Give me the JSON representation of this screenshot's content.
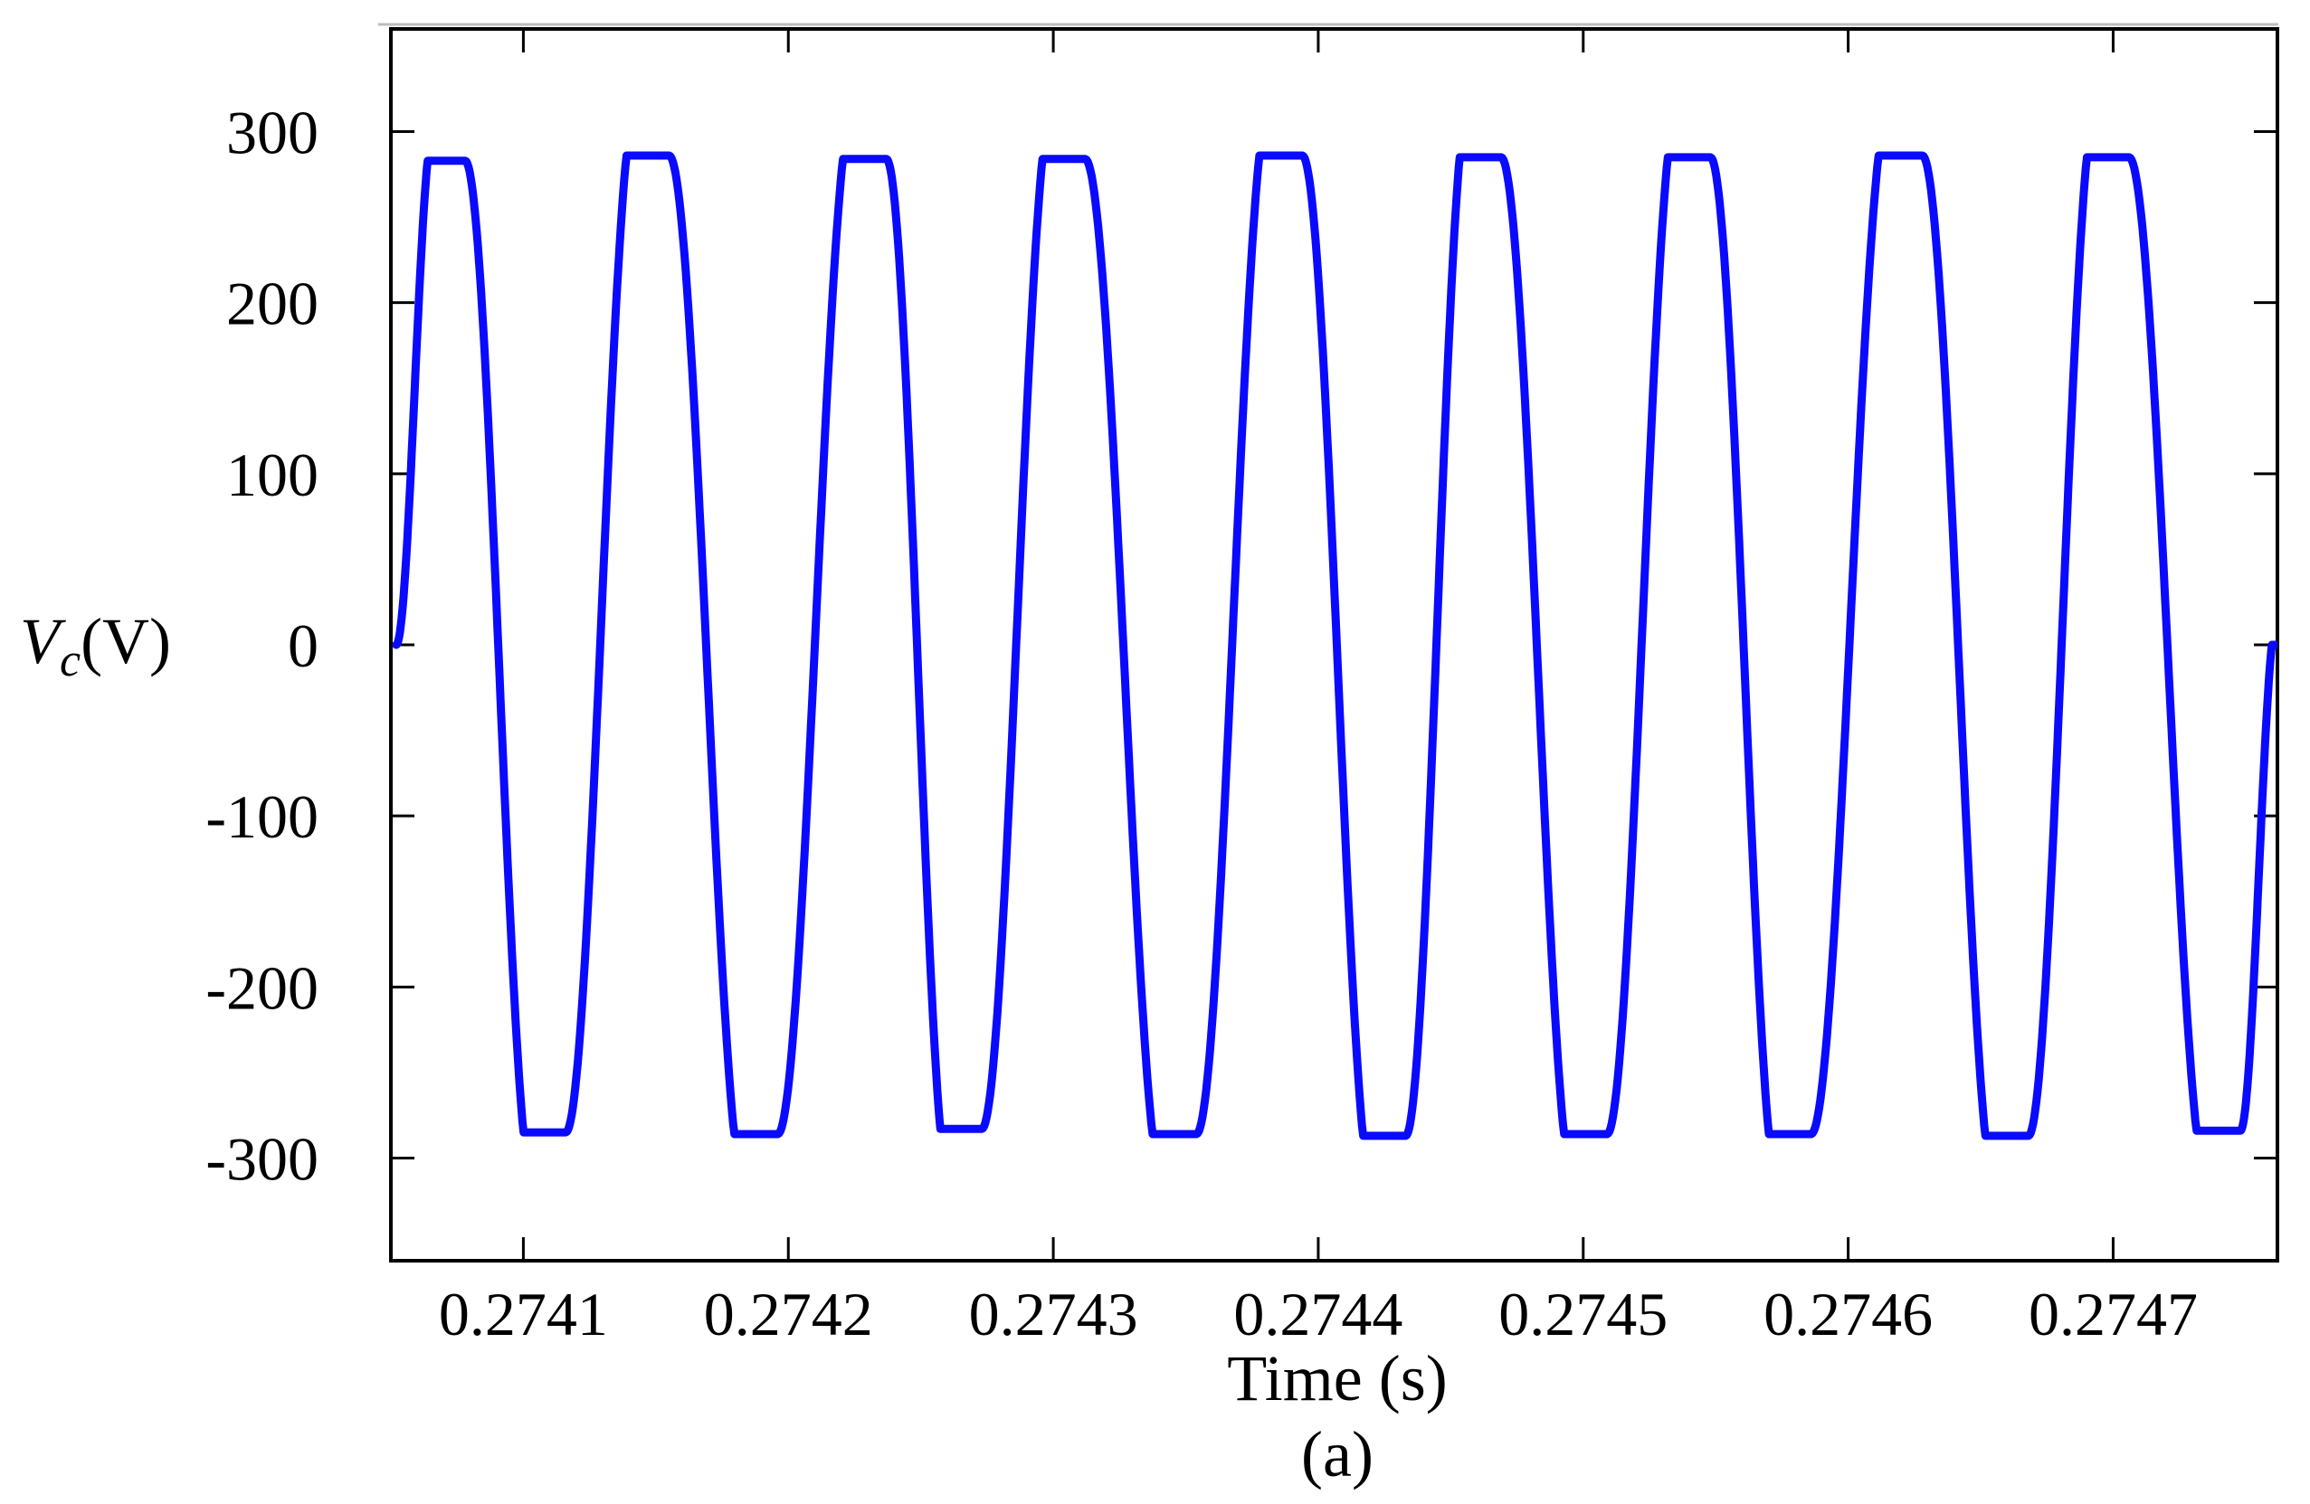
{
  "chart_data": {
    "type": "line",
    "title": "",
    "xlabel": "Time (s)",
    "ylabel": {
      "symbol": "V",
      "subscript": "c",
      "unit": "(V)"
    },
    "caption": "(a)",
    "xlim": [
      0.27405,
      0.274762
    ],
    "ylim": [
      -360,
      360
    ],
    "x_ticks": [
      {
        "value": 0.2741,
        "label": "0.2741"
      },
      {
        "value": 0.2742,
        "label": "0.2742"
      },
      {
        "value": 0.2743,
        "label": "0.2743"
      },
      {
        "value": 0.2744,
        "label": "0.2744"
      },
      {
        "value": 0.2745,
        "label": "0.2745"
      },
      {
        "value": 0.2746,
        "label": "0.2746"
      },
      {
        "value": 0.2747,
        "label": "0.2747"
      }
    ],
    "y_ticks": [
      {
        "value": 300,
        "label": "300"
      },
      {
        "value": 200,
        "label": "200"
      },
      {
        "value": 100,
        "label": "100"
      },
      {
        "value": 0,
        "label": "0"
      },
      {
        "value": -100,
        "label": "-100"
      },
      {
        "value": -200,
        "label": "-200"
      },
      {
        "value": -300,
        "label": "-300"
      }
    ],
    "grid": false,
    "series": [
      {
        "color": "#0a0aff",
        "waveform": "sinusoid, flattened at peaks",
        "start_time": 0.274052,
        "start_value": 0,
        "end_time": 0.274762,
        "period": 8.98e-05,
        "peak_value": 285,
        "peaks": [
          {
            "x": 0.274072,
            "y": 283
          },
          {
            "x": 0.27411,
            "y": -285
          },
          {
            "x": 0.274149,
            "y": 286
          },
          {
            "x": 0.27419,
            "y": -286
          },
          {
            "x": 0.274231,
            "y": 284
          },
          {
            "x": 0.274267,
            "y": -283
          },
          {
            "x": 0.274306,
            "y": 284
          },
          {
            "x": 0.274348,
            "y": -286
          },
          {
            "x": 0.274388,
            "y": 286
          },
          {
            "x": 0.274427,
            "y": -287
          },
          {
            "x": 0.274463,
            "y": 285
          },
          {
            "x": 0.274503,
            "y": -286
          },
          {
            "x": 0.274542,
            "y": 285
          },
          {
            "x": 0.27458,
            "y": -286
          },
          {
            "x": 0.274622,
            "y": 286
          },
          {
            "x": 0.274662,
            "y": -287
          },
          {
            "x": 0.2747,
            "y": 285
          },
          {
            "x": 0.274742,
            "y": -284
          }
        ]
      }
    ]
  }
}
